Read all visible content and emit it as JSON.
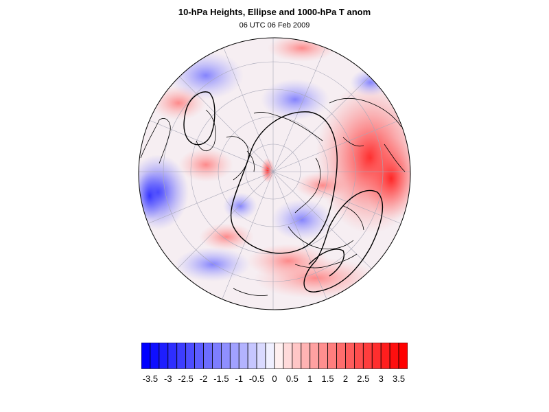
{
  "title": "10-hPa Heights, Ellipse and 1000-hPa T anom",
  "subtitle": "06 UTC 06 Feb 2009",
  "colorbar": {
    "labels": [
      "-3.5",
      "-3",
      "-2.5",
      "-2",
      "-1.5",
      "-1",
      "-0.5",
      "0",
      "0.5",
      "1",
      "1.5",
      "2",
      "2.5",
      "3",
      "3.5"
    ],
    "min": -3.75,
    "max": 3.75,
    "step": 0.25,
    "neg_color": "#0000ff",
    "mid_color": "#ffffff",
    "pos_color": "#ff0000"
  },
  "map": {
    "projection": "orthographic-north-polar",
    "field": "1000-hPa T anom"
  }
}
